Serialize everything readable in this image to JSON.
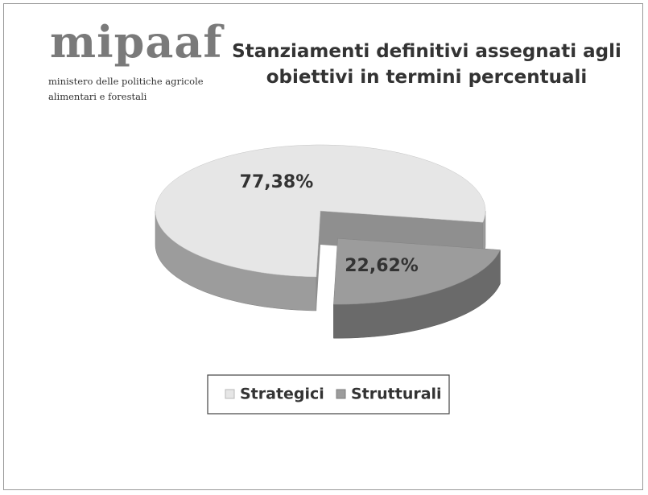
{
  "logo": {
    "name": "mipaaf",
    "subtitle": "ministero delle politiche agricole alimentari e forestali"
  },
  "chart_data": {
    "type": "pie3d",
    "title": "Stanziamenti definitivi assegnati agli obiettivi in termini percentuali",
    "categories": [
      "Strategici",
      "Strutturali"
    ],
    "values": [
      77.38,
      22.62
    ],
    "value_labels": [
      "77,38%",
      "22,62%"
    ],
    "colors": [
      "#e6e6e6",
      "#9c9c9c"
    ],
    "legend": "bottom"
  }
}
